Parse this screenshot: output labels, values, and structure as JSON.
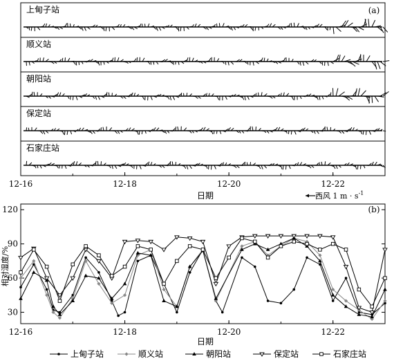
{
  "chart_data": [
    {
      "type": "vector",
      "panel_label": "(a)",
      "xlabel": "日期",
      "x_range": [
        "12-16",
        "12-23"
      ],
      "x_ticks": [
        "12-16",
        "12-18",
        "12-20",
        "12-22"
      ],
      "scale_label": "西风 1 m · s",
      "scale_exp": "-1",
      "stations": [
        "上甸子站",
        "顺义站",
        "朝阳站",
        "保定站",
        "石家庄站"
      ]
    },
    {
      "type": "line",
      "panel_label": "(b)",
      "xlabel": "日期",
      "ylabel": "相对湿度/%",
      "x_range": [
        "12-16",
        "12-23"
      ],
      "x_ticks": [
        "12-16",
        "12-18",
        "12-20",
        "12-22"
      ],
      "ylim": [
        20,
        125
      ],
      "y_ticks": [
        30,
        60,
        90,
        120
      ],
      "legend_position": "bottom",
      "series": [
        {
          "name": "上甸子站",
          "marker": "dot",
          "color": "#000000",
          "points": [
            [
              "12-16 00:00",
              52
            ],
            [
              "12-16 06:00",
              72
            ],
            [
              "12-16 12:00",
              50
            ],
            [
              "12-16 15:00",
              32
            ],
            [
              "12-16 18:00",
              30
            ],
            [
              "12-17 00:00",
              45
            ],
            [
              "12-17 06:00",
              78
            ],
            [
              "12-17 12:00",
              65
            ],
            [
              "12-17 18:00",
              40
            ],
            [
              "12-17 21:00",
              27
            ],
            [
              "12-18 00:00",
              30
            ],
            [
              "12-18 06:00",
              75
            ],
            [
              "12-18 12:00",
              80
            ],
            [
              "12-18 18:00",
              55
            ],
            [
              "12-19 00:00",
              30
            ],
            [
              "12-19 06:00",
              65
            ],
            [
              "12-19 12:00",
              85
            ],
            [
              "12-19 18:00",
              40
            ],
            [
              "12-19 21:00",
              30
            ],
            [
              "12-20 06:00",
              78
            ],
            [
              "12-20 12:00",
              70
            ],
            [
              "12-20 18:00",
              40
            ],
            [
              "12-21 00:00",
              38
            ],
            [
              "12-21 06:00",
              50
            ],
            [
              "12-21 12:00",
              78
            ],
            [
              "12-21 18:00",
              72
            ],
            [
              "12-22 00:00",
              40
            ],
            [
              "12-22 06:00",
              60
            ],
            [
              "12-22 12:00",
              30
            ],
            [
              "12-22 18:00",
              28
            ],
            [
              "12-23 00:00",
              38
            ]
          ]
        },
        {
          "name": "顺义站",
          "marker": "diamond",
          "color": "#888888",
          "points": [
            [
              "12-16 00:00",
              60
            ],
            [
              "12-16 06:00",
              75
            ],
            [
              "12-16 12:00",
              45
            ],
            [
              "12-16 15:00",
              30
            ],
            [
              "12-16 18:00",
              25
            ],
            [
              "12-17 00:00",
              42
            ],
            [
              "12-17 06:00",
              75
            ],
            [
              "12-17 12:00",
              55
            ],
            [
              "12-17 18:00",
              38
            ],
            [
              "12-18 00:00",
              45
            ],
            [
              "12-18 06:00",
              80
            ],
            [
              "12-18 12:00",
              85
            ],
            [
              "12-18 18:00",
              50
            ],
            [
              "12-19 00:00",
              35
            ],
            [
              "12-19 06:00",
              70
            ],
            [
              "12-19 12:00",
              85
            ],
            [
              "12-19 18:00",
              40
            ],
            [
              "12-20 06:00",
              88
            ],
            [
              "12-20 12:00",
              92
            ],
            [
              "12-20 18:00",
              80
            ],
            [
              "12-21 00:00",
              88
            ],
            [
              "12-21 06:00",
              95
            ],
            [
              "12-21 12:00",
              92
            ],
            [
              "12-21 18:00",
              80
            ],
            [
              "12-22 00:00",
              50
            ],
            [
              "12-22 06:00",
              40
            ],
            [
              "12-22 12:00",
              32
            ],
            [
              "12-22 18:00",
              24
            ],
            [
              "12-23 00:00",
              40
            ]
          ]
        },
        {
          "name": "朝阳站",
          "marker": "triangle",
          "color": "#000000",
          "points": [
            [
              "12-16 00:00",
              42
            ],
            [
              "12-16 06:00",
              65
            ],
            [
              "12-16 12:00",
              58
            ],
            [
              "12-16 15:00",
              35
            ],
            [
              "12-16 18:00",
              28
            ],
            [
              "12-17 00:00",
              40
            ],
            [
              "12-17 06:00",
              62
            ],
            [
              "12-17 12:00",
              60
            ],
            [
              "12-17 18:00",
              42
            ],
            [
              "12-18 00:00",
              55
            ],
            [
              "12-18 06:00",
              82
            ],
            [
              "12-18 12:00",
              80
            ],
            [
              "12-18 18:00",
              40
            ],
            [
              "12-19 00:00",
              35
            ],
            [
              "12-19 06:00",
              70
            ],
            [
              "12-19 12:00",
              84
            ],
            [
              "12-19 18:00",
              42
            ],
            [
              "12-20 06:00",
              85
            ],
            [
              "12-20 12:00",
              90
            ],
            [
              "12-20 18:00",
              85
            ],
            [
              "12-21 00:00",
              90
            ],
            [
              "12-21 06:00",
              95
            ],
            [
              "12-21 12:00",
              88
            ],
            [
              "12-21 18:00",
              75
            ],
            [
              "12-22 00:00",
              45
            ],
            [
              "12-22 06:00",
              35
            ],
            [
              "12-22 12:00",
              28
            ],
            [
              "12-22 18:00",
              26
            ],
            [
              "12-23 00:00",
              50
            ]
          ]
        },
        {
          "name": "保定站",
          "marker": "triangle-down",
          "color": "#000000",
          "points": [
            [
              "12-16 00:00",
              78
            ],
            [
              "12-16 06:00",
              86
            ],
            [
              "12-16 12:00",
              60
            ],
            [
              "12-16 18:00",
              45
            ],
            [
              "12-17 00:00",
              60
            ],
            [
              "12-17 06:00",
              85
            ],
            [
              "12-17 12:00",
              75
            ],
            [
              "12-17 18:00",
              60
            ],
            [
              "12-18 00:00",
              92
            ],
            [
              "12-18 06:00",
              93
            ],
            [
              "12-18 12:00",
              92
            ],
            [
              "12-18 18:00",
              85
            ],
            [
              "12-19 00:00",
              96
            ],
            [
              "12-19 06:00",
              95
            ],
            [
              "12-19 12:00",
              92
            ],
            [
              "12-19 18:00",
              55
            ],
            [
              "12-20 00:00",
              88
            ],
            [
              "12-20 06:00",
              96
            ],
            [
              "12-20 12:00",
              97
            ],
            [
              "12-20 18:00",
              97
            ],
            [
              "12-21 00:00",
              97
            ],
            [
              "12-21 06:00",
              97
            ],
            [
              "12-21 12:00",
              97
            ],
            [
              "12-21 18:00",
              97
            ],
            [
              "12-22 00:00",
              96
            ],
            [
              "12-22 06:00",
              70
            ],
            [
              "12-22 12:00",
              34
            ],
            [
              "12-22 18:00",
              30
            ],
            [
              "12-23 00:00",
              85
            ]
          ]
        },
        {
          "name": "石家庄站",
          "marker": "square",
          "color": "#000000",
          "points": [
            [
              "12-16 00:00",
              65
            ],
            [
              "12-16 06:00",
              85
            ],
            [
              "12-16 12:00",
              70
            ],
            [
              "12-16 18:00",
              40
            ],
            [
              "12-17 00:00",
              72
            ],
            [
              "12-17 06:00",
              88
            ],
            [
              "12-17 12:00",
              80
            ],
            [
              "12-17 18:00",
              62
            ],
            [
              "12-18 00:00",
              70
            ],
            [
              "12-18 06:00",
              88
            ],
            [
              "12-18 12:00",
              85
            ],
            [
              "12-18 18:00",
              55
            ],
            [
              "12-19 00:00",
              75
            ],
            [
              "12-19 06:00",
              88
            ],
            [
              "12-19 12:00",
              85
            ],
            [
              "12-19 18:00",
              60
            ],
            [
              "12-20 00:00",
              78
            ],
            [
              "12-20 06:00",
              95
            ],
            [
              "12-20 12:00",
              92
            ],
            [
              "12-20 18:00",
              78
            ],
            [
              "12-21 00:00",
              88
            ],
            [
              "12-21 06:00",
              92
            ],
            [
              "12-21 12:00",
              90
            ],
            [
              "12-21 18:00",
              85
            ],
            [
              "12-22 00:00",
              90
            ],
            [
              "12-22 06:00",
              85
            ],
            [
              "12-22 12:00",
              50
            ],
            [
              "12-22 18:00",
              35
            ],
            [
              "12-23 00:00",
              60
            ]
          ]
        }
      ]
    }
  ]
}
